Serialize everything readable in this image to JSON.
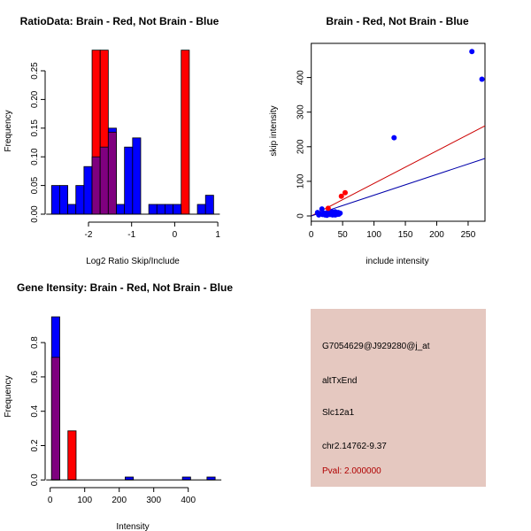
{
  "chart_data": [
    {
      "type": "bar",
      "subtype": "overlaid-histogram",
      "title": "RatioData: Brain - Red, Not Brain - Blue",
      "xlabel": "Log2 Ratio Skip/Include",
      "ylabel": "Frequency",
      "bin_start": -2.857,
      "bin_width": 0.188,
      "xticks": [
        -2,
        -1,
        0,
        1
      ],
      "yticks": [
        "0.00",
        "0.05",
        "0.10",
        "0.15",
        "0.20",
        "0.25"
      ],
      "ylim": [
        0,
        0.286
      ],
      "series": [
        {
          "name": "Not Brain",
          "color": "#0000ff",
          "values": [
            0.05,
            0.05,
            0.017,
            0.05,
            0.083,
            0.1,
            0.117,
            0.15,
            0.017,
            0.117,
            0.133,
            0,
            0.017,
            0.017,
            0.017,
            0.017,
            0,
            0,
            0.017,
            0.033
          ]
        },
        {
          "name": "Brain",
          "color": "#ff0000",
          "values": [
            0,
            0,
            0,
            0,
            0,
            0.286,
            0.286,
            0.143,
            0,
            0,
            0,
            0,
            0,
            0,
            0,
            0,
            0.286,
            0,
            0,
            0
          ]
        }
      ],
      "overlap_color": "#7f007f"
    },
    {
      "type": "scatter",
      "title": "Brain - Red, Not Brain - Blue",
      "xlabel": "include intensity",
      "ylabel": "skip intensity",
      "xlim": [
        0,
        280
      ],
      "ylim": [
        -15,
        495
      ],
      "xticks": [
        0,
        50,
        100,
        150,
        200,
        250
      ],
      "yticks": [
        0,
        100,
        200,
        300,
        400
      ],
      "series": [
        {
          "name": "Not Brain",
          "color": "#0000ff",
          "points": [
            [
              256,
              475
            ],
            [
              272,
              395
            ],
            [
              132,
              226
            ],
            [
              17,
              20
            ],
            [
              10,
              10
            ],
            [
              14,
              6
            ],
            [
              18,
              4
            ],
            [
              20,
              8
            ],
            [
              22,
              3
            ],
            [
              24,
              6
            ],
            [
              26,
              10
            ],
            [
              28,
              5
            ],
            [
              30,
              4
            ],
            [
              32,
              8
            ],
            [
              34,
              3
            ],
            [
              36,
              6
            ],
            [
              38,
              12
            ],
            [
              40,
              4
            ],
            [
              42,
              7
            ],
            [
              44,
              5
            ],
            [
              46,
              8
            ],
            [
              25,
              2
            ],
            [
              33,
              12
            ],
            [
              12,
              3
            ],
            [
              28,
              14
            ],
            [
              38,
              3
            ],
            [
              43,
              10
            ]
          ]
        },
        {
          "name": "Brain",
          "color": "#ff0000",
          "points": [
            [
              48,
              57
            ],
            [
              54,
              67
            ],
            [
              27,
              22
            ]
          ]
        }
      ],
      "fit_lines": [
        {
          "name": "Brain fit",
          "color": "#cc0000",
          "slope": 0.94
        },
        {
          "name": "Not Brain fit",
          "color": "#0000aa",
          "slope": 0.6
        }
      ]
    },
    {
      "type": "bar",
      "subtype": "overlaid-histogram",
      "title": "Gene Itensity: Brain - Red, Not Brain - Blue",
      "xlabel": "Intensity",
      "ylabel": "Frequency",
      "bin_start": 4,
      "bin_width": 23.7,
      "xticks": [
        0,
        100,
        200,
        300,
        400
      ],
      "yticks": [
        "0.0",
        "0.2",
        "0.4",
        "0.6",
        "0.8"
      ],
      "ylim": [
        0,
        0.95
      ],
      "series": [
        {
          "name": "Not Brain",
          "color": "#0000ff",
          "values": [
            0.95,
            0,
            0,
            0,
            0,
            0,
            0,
            0,
            0,
            0.017,
            0,
            0,
            0,
            0,
            0,
            0,
            0.017,
            0,
            0,
            0.017
          ]
        },
        {
          "name": "Brain",
          "color": "#ff0000",
          "values": [
            0.714,
            0,
            0.286,
            0,
            0,
            0,
            0,
            0,
            0,
            0,
            0,
            0,
            0,
            0,
            0,
            0,
            0,
            0,
            0,
            0
          ]
        }
      ],
      "overlap_color": "#7f007f"
    }
  ],
  "info": {
    "probe": "G7054629@J929280@j_at",
    "event": "altTxEnd",
    "gene": "Slc12a1",
    "location": "chr2.14762-9.37",
    "pval": "Pval: 2.000000"
  }
}
